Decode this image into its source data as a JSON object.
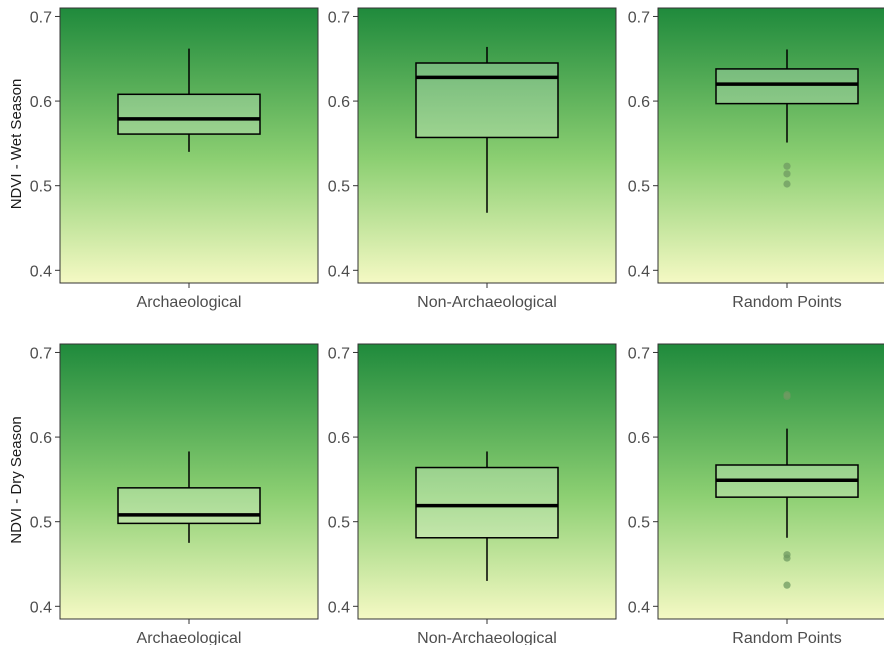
{
  "colors": {
    "gradient_top": "#1f8a3c",
    "gradient_mid": "#8ccf72",
    "gradient_bottom": "#f5f9c4",
    "box_fill": "#ffffff",
    "box_fill_opacity": 0.25,
    "line": "#000000",
    "outlier": "#6f9a62"
  },
  "chart_data": [
    {
      "type": "box",
      "row_label": "NDVI - Wet Season",
      "category": "Archaeological",
      "ylim": [
        0.385,
        0.71
      ],
      "yticks": [
        "0.4",
        "0.5",
        "0.6",
        "0.7"
      ],
      "whisker_low": 0.54,
      "q1": 0.561,
      "median": 0.579,
      "q3": 0.608,
      "whisker_high": 0.662,
      "outliers": []
    },
    {
      "type": "box",
      "row_label": "",
      "category": "Non-Archaeological",
      "ylim": [
        0.385,
        0.71
      ],
      "yticks": [
        "0.4",
        "0.5",
        "0.6",
        "0.7"
      ],
      "whisker_low": 0.468,
      "q1": 0.557,
      "median": 0.628,
      "q3": 0.645,
      "whisker_high": 0.664,
      "outliers": []
    },
    {
      "type": "box",
      "row_label": "",
      "category": "Random Points",
      "ylim": [
        0.385,
        0.71
      ],
      "yticks": [
        "0.4",
        "0.5",
        "0.6",
        "0.7"
      ],
      "whisker_low": 0.551,
      "q1": 0.597,
      "median": 0.62,
      "q3": 0.638,
      "whisker_high": 0.661,
      "outliers": [
        0.523,
        0.514,
        0.502
      ]
    },
    {
      "type": "box",
      "row_label": "NDVI - Dry Season",
      "category": "Archaeological",
      "ylim": [
        0.385,
        0.71
      ],
      "yticks": [
        "0.4",
        "0.5",
        "0.6",
        "0.7"
      ],
      "whisker_low": 0.475,
      "q1": 0.498,
      "median": 0.508,
      "q3": 0.54,
      "whisker_high": 0.583,
      "outliers": []
    },
    {
      "type": "box",
      "row_label": "",
      "category": "Non-Archaeological",
      "ylim": [
        0.385,
        0.71
      ],
      "yticks": [
        "0.4",
        "0.5",
        "0.6",
        "0.7"
      ],
      "whisker_low": 0.43,
      "q1": 0.481,
      "median": 0.519,
      "q3": 0.564,
      "whisker_high": 0.583,
      "outliers": []
    },
    {
      "type": "box",
      "row_label": "",
      "category": "Random Points",
      "ylim": [
        0.385,
        0.71
      ],
      "yticks": [
        "0.4",
        "0.5",
        "0.6",
        "0.7"
      ],
      "whisker_low": 0.481,
      "q1": 0.529,
      "median": 0.549,
      "q3": 0.567,
      "whisker_high": 0.61,
      "outliers": [
        0.65,
        0.648,
        0.461,
        0.457,
        0.425
      ]
    }
  ]
}
